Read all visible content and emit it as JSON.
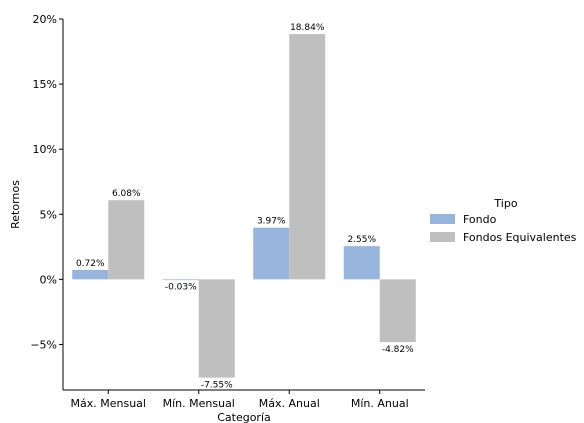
{
  "chart_data": {
    "type": "bar",
    "categories": [
      "Máx. Mensual",
      "Mín. Mensual",
      "Máx. Anual",
      "Mín. Anual"
    ],
    "series": [
      {
        "name": "Fondo",
        "color": "#97b4dc",
        "values": [
          0.72,
          -0.03,
          3.97,
          2.55
        ],
        "labels": [
          "0.72%",
          "-0.03%",
          "3.97%",
          "2.55%"
        ]
      },
      {
        "name": "Fondos Equivalentes",
        "color": "#bfbfbf",
        "values": [
          6.08,
          -7.55,
          18.84,
          -4.82
        ],
        "labels": [
          "6.08%",
          "-7.55%",
          "18.84%",
          "-4.82%"
        ]
      }
    ],
    "xlabel": "Categoría",
    "ylabel": "Retornos",
    "ylim": [
      -8.5,
      20
    ],
    "yticks": [
      -5,
      0,
      5,
      10,
      15,
      20
    ],
    "ytick_labels": [
      "−5%",
      "0%",
      "5%",
      "10%",
      "15%",
      "20%"
    ],
    "legend_title": "Tipo",
    "legend_position": "right",
    "grid": false
  }
}
